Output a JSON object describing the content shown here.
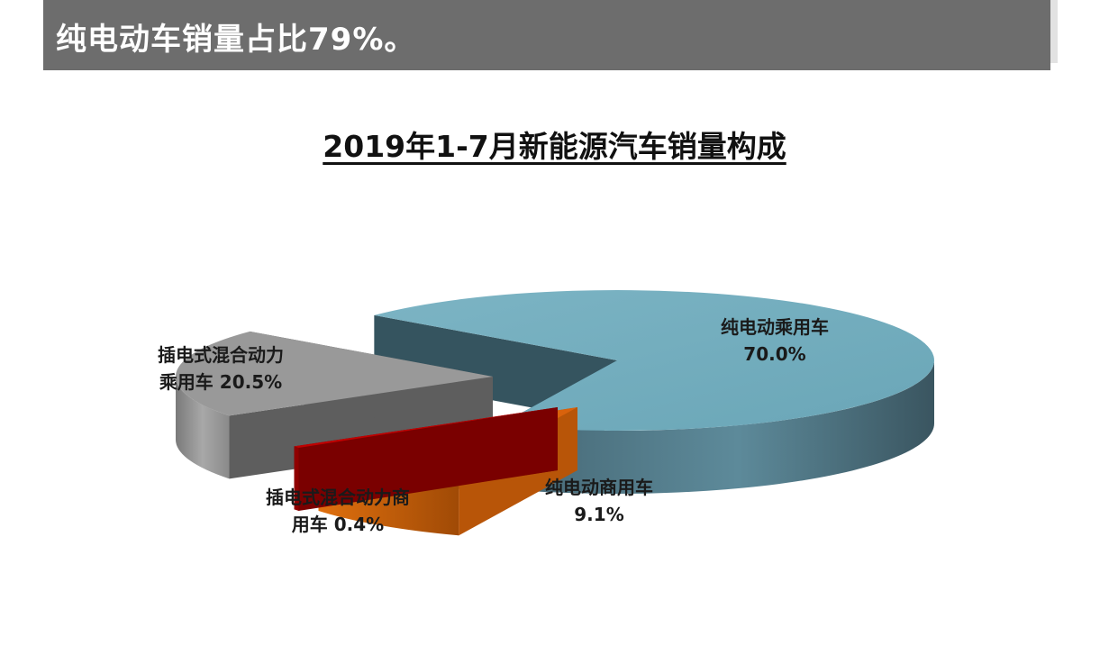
{
  "header": {
    "title": "纯电动车销量占比79%。"
  },
  "chart_data": {
    "type": "pie",
    "title": "2019年1-7月新能源汽车销量构成",
    "slices": [
      {
        "name": "纯电动乘用车",
        "value": 70.0,
        "value_label": "70.0%",
        "color": "#76afc0",
        "label_lines": [
          "纯电动乘用车",
          "70.0%"
        ]
      },
      {
        "name": "纯电动商用车",
        "value": 9.1,
        "value_label": "9.1%",
        "color": "#d9620c",
        "label_lines": [
          "纯电动商用车",
          "9.1%"
        ]
      },
      {
        "name": "插电式混合动力商用车",
        "value": 0.4,
        "value_label": "0.4%",
        "color": "#c00000",
        "label_lines": [
          "插电式混合动力商",
          "用车 0.4%"
        ]
      },
      {
        "name": "插电式混合动力乘用车",
        "value": 20.5,
        "value_label": "20.5%",
        "color": "#9a9a9a",
        "label_lines": [
          "插电式混合动力",
          "乘用车 20.5%"
        ]
      }
    ],
    "style": "3d-exploded"
  }
}
